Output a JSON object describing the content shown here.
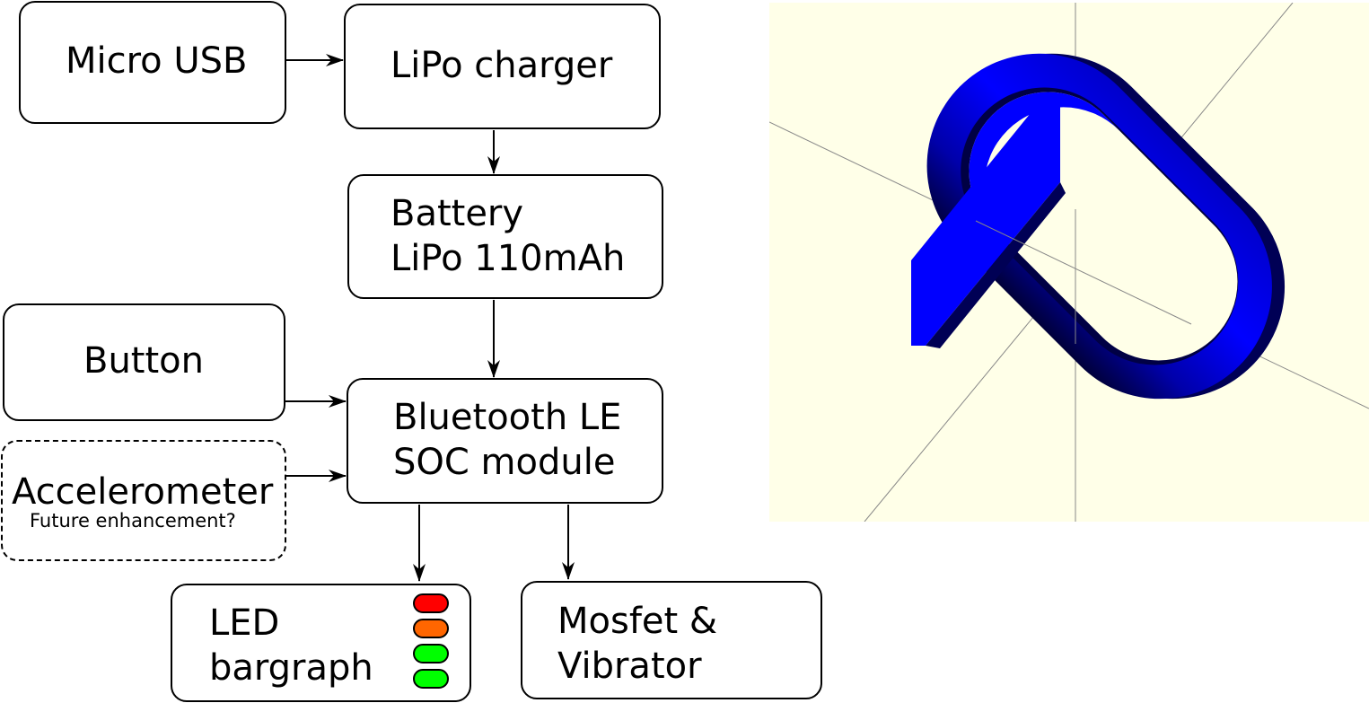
{
  "diagram": {
    "nodes": {
      "micro_usb": "Micro USB",
      "lipo_charger": "LiPo charger",
      "battery_line1": "Battery",
      "battery_line2": "LiPo 110mAh",
      "button": "Button",
      "ble_line1": "Bluetooth LE",
      "ble_line2": "SOC module",
      "accelerometer": "Accelerometer",
      "accelerometer_note": "Future enhancement?",
      "led_line1": "LED",
      "led_line2": "bargraph",
      "mosfet_line1": "Mosfet &",
      "mosfet_line2": "Vibrator"
    },
    "led_colors": [
      "#ff0000",
      "#ff6600",
      "#00ff00",
      "#00ff00"
    ],
    "edges": [
      {
        "from": "Micro USB",
        "to": "LiPo charger"
      },
      {
        "from": "LiPo charger",
        "to": "Battery"
      },
      {
        "from": "Battery",
        "to": "Bluetooth LE SOC module"
      },
      {
        "from": "Button",
        "to": "Bluetooth LE SOC module"
      },
      {
        "from": "Accelerometer",
        "to": "Bluetooth LE SOC module",
        "style": "dashed source"
      },
      {
        "from": "Bluetooth LE SOC module",
        "to": "LED bargraph"
      },
      {
        "from": "Bluetooth LE SOC module",
        "to": "Mosfet & Vibrator"
      }
    ]
  },
  "render": {
    "background_color": "#ffffe8",
    "object_color": "#0000ff",
    "shadow_color": "#000066",
    "axis_color": "#888888"
  }
}
